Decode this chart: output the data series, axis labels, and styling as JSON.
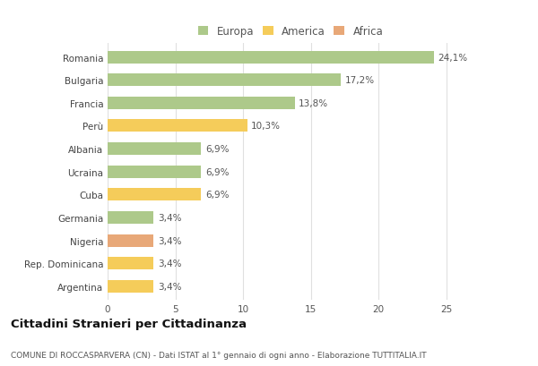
{
  "countries": [
    "Romania",
    "Bulgaria",
    "Francia",
    "Perù",
    "Albania",
    "Ucraina",
    "Cuba",
    "Germania",
    "Nigeria",
    "Rep. Dominicana",
    "Argentina"
  ],
  "values": [
    24.1,
    17.2,
    13.8,
    10.3,
    6.9,
    6.9,
    6.9,
    3.4,
    3.4,
    3.4,
    3.4
  ],
  "labels": [
    "24,1%",
    "17,2%",
    "13,8%",
    "10,3%",
    "6,9%",
    "6,9%",
    "6,9%",
    "3,4%",
    "3,4%",
    "3,4%",
    "3,4%"
  ],
  "continents": [
    "Europa",
    "Europa",
    "Europa",
    "America",
    "Europa",
    "Europa",
    "America",
    "Europa",
    "Africa",
    "America",
    "America"
  ],
  "colors": {
    "Europa": "#adc98a",
    "America": "#f5cc5a",
    "Africa": "#e8a878"
  },
  "title": "Cittadini Stranieri per Cittadinanza",
  "subtitle": "COMUNE DI ROCCASPARVERA (CN) - Dati ISTAT al 1° gennaio di ogni anno - Elaborazione TUTTITALIA.IT",
  "xlim": [
    0,
    27
  ],
  "xticks": [
    0,
    5,
    10,
    15,
    20,
    25
  ],
  "background_color": "#ffffff",
  "grid_color": "#e0e0e0",
  "bar_height": 0.55,
  "title_fontsize": 9.5,
  "subtitle_fontsize": 6.5,
  "label_fontsize": 7.5,
  "tick_fontsize": 7.5,
  "legend_fontsize": 8.5
}
